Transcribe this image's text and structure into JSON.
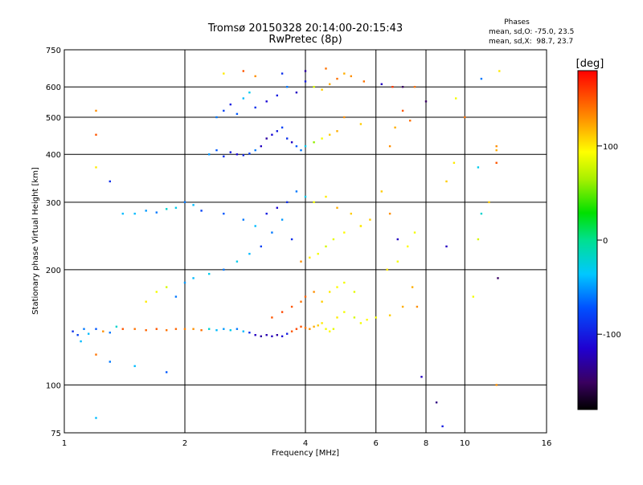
{
  "chart_data": {
    "type": "scatter",
    "title": "Tromsø 20150328 20:14:00-20:15:43",
    "subtitle": "RwPretec (8p)",
    "xlabel": "Frequency [MHz]",
    "ylabel": "Stationary phase Virtual Height [km]",
    "xscale": "log",
    "yscale": "log",
    "xlim": [
      1,
      16
    ],
    "ylim": [
      75,
      750
    ],
    "xticks": [
      1,
      2,
      4,
      6,
      8,
      10,
      16
    ],
    "yticks": [
      75,
      100,
      200,
      300,
      400,
      500,
      600,
      750
    ],
    "grid": true,
    "phases_info": {
      "title": "Phases",
      "line_o": "mean, sd,O: -75.0, 23.5",
      "line_x": "mean, sd,X:  98.7, 23.7"
    },
    "colorbar": {
      "label": "[deg]",
      "range": [
        -180,
        180
      ],
      "ticks": [
        100,
        0,
        -100
      ]
    },
    "points": [
      [
        1.05,
        138,
        -90
      ],
      [
        1.08,
        135,
        -80
      ],
      [
        1.12,
        140,
        -60
      ],
      [
        1.15,
        136,
        -40
      ],
      [
        1.2,
        140,
        -70
      ],
      [
        1.25,
        138,
        130
      ],
      [
        1.3,
        137,
        -60
      ],
      [
        1.35,
        142,
        -20
      ],
      [
        1.4,
        140,
        150
      ],
      [
        1.5,
        140,
        140
      ],
      [
        1.6,
        139,
        145
      ],
      [
        1.7,
        140,
        150
      ],
      [
        1.8,
        139,
        140
      ],
      [
        1.9,
        140,
        145
      ],
      [
        2.0,
        140,
        135
      ],
      [
        2.1,
        140,
        130
      ],
      [
        2.2,
        139,
        140
      ],
      [
        2.3,
        140,
        -20
      ],
      [
        2.4,
        139,
        -40
      ],
      [
        2.5,
        140,
        -50
      ],
      [
        2.6,
        139,
        -30
      ],
      [
        2.7,
        140,
        -60
      ],
      [
        2.8,
        138,
        -40
      ],
      [
        2.9,
        137,
        -90
      ],
      [
        3.0,
        135,
        -120
      ],
      [
        3.1,
        134,
        -130
      ],
      [
        3.2,
        135,
        -125
      ],
      [
        3.3,
        134,
        -120
      ],
      [
        3.4,
        135,
        -130
      ],
      [
        3.5,
        134,
        -110
      ],
      [
        3.6,
        136,
        -100
      ],
      [
        3.7,
        138,
        150
      ],
      [
        3.8,
        140,
        155
      ],
      [
        3.9,
        142,
        150
      ],
      [
        4.0,
        141,
        140
      ],
      [
        4.1,
        140,
        130
      ],
      [
        4.2,
        142,
        120
      ],
      [
        4.3,
        143,
        110
      ],
      [
        4.4,
        145,
        100
      ],
      [
        4.5,
        140,
        90
      ],
      [
        4.6,
        138,
        95
      ],
      [
        4.7,
        140,
        85
      ],
      [
        4.8,
        150,
        100
      ],
      [
        5.0,
        155,
        90
      ],
      [
        5.3,
        150,
        80
      ],
      [
        5.5,
        145,
        90
      ],
      [
        5.7,
        148,
        95
      ],
      [
        6.0,
        150,
        90
      ],
      [
        6.5,
        152,
        110
      ],
      [
        7.0,
        160,
        120
      ],
      [
        3.3,
        150,
        150
      ],
      [
        3.5,
        155,
        155
      ],
      [
        3.7,
        160,
        150
      ],
      [
        3.9,
        165,
        140
      ],
      [
        4.0,
        170,
        145
      ],
      [
        4.2,
        175,
        130
      ],
      [
        4.4,
        165,
        110
      ],
      [
        4.6,
        175,
        100
      ],
      [
        4.8,
        180,
        95
      ],
      [
        5.0,
        185,
        90
      ],
      [
        5.3,
        175,
        85
      ],
      [
        1.6,
        165,
        100
      ],
      [
        1.7,
        175,
        90
      ],
      [
        1.8,
        180,
        80
      ],
      [
        1.9,
        170,
        -60
      ],
      [
        2.0,
        185,
        -50
      ],
      [
        2.1,
        190,
        -40
      ],
      [
        2.3,
        195,
        -30
      ],
      [
        2.5,
        200,
        -60
      ],
      [
        2.7,
        210,
        -30
      ],
      [
        2.9,
        220,
        -40
      ],
      [
        3.1,
        230,
        -80
      ],
      [
        3.3,
        250,
        -60
      ],
      [
        3.5,
        270,
        -50
      ],
      [
        3.7,
        240,
        -90
      ],
      [
        3.9,
        210,
        130
      ],
      [
        4.1,
        215,
        100
      ],
      [
        4.3,
        220,
        90
      ],
      [
        4.5,
        230,
        80
      ],
      [
        4.7,
        240,
        85
      ],
      [
        5.0,
        250,
        95
      ],
      [
        5.5,
        260,
        100
      ],
      [
        5.8,
        270,
        110
      ],
      [
        1.5,
        280,
        -40
      ],
      [
        1.6,
        285,
        -50
      ],
      [
        1.7,
        282,
        -60
      ],
      [
        1.8,
        288,
        -20
      ],
      [
        1.9,
        290,
        -30
      ],
      [
        2.0,
        300,
        -60
      ],
      [
        2.1,
        295,
        -40
      ],
      [
        2.2,
        285,
        -80
      ],
      [
        2.5,
        280,
        -70
      ],
      [
        2.8,
        270,
        -60
      ],
      [
        3.0,
        260,
        -40
      ],
      [
        3.2,
        280,
        -100
      ],
      [
        3.4,
        290,
        -110
      ],
      [
        3.6,
        300,
        -90
      ],
      [
        3.8,
        320,
        -60
      ],
      [
        4.0,
        310,
        -30
      ],
      [
        4.2,
        300,
        90
      ],
      [
        4.5,
        310,
        100
      ],
      [
        4.8,
        290,
        120
      ],
      [
        5.2,
        280,
        110
      ],
      [
        5.5,
        260,
        100
      ],
      [
        6.5,
        280,
        130
      ],
      [
        6.8,
        240,
        -120
      ],
      [
        7.5,
        250,
        90
      ],
      [
        2.3,
        400,
        -50
      ],
      [
        2.4,
        410,
        -70
      ],
      [
        2.5,
        395,
        -90
      ],
      [
        2.6,
        405,
        -100
      ],
      [
        2.7,
        400,
        -110
      ],
      [
        2.8,
        398,
        -95
      ],
      [
        2.9,
        402,
        -80
      ],
      [
        3.0,
        410,
        -60
      ],
      [
        3.1,
        420,
        -120
      ],
      [
        3.2,
        440,
        -130
      ],
      [
        3.3,
        450,
        -110
      ],
      [
        3.4,
        460,
        -100
      ],
      [
        3.5,
        470,
        -80
      ],
      [
        3.6,
        440,
        -90
      ],
      [
        3.7,
        430,
        -120
      ],
      [
        3.8,
        420,
        -70
      ],
      [
        3.9,
        410,
        -60
      ],
      [
        4.0,
        420,
        -30
      ],
      [
        4.2,
        430,
        60
      ],
      [
        4.4,
        440,
        90
      ],
      [
        4.6,
        450,
        110
      ],
      [
        4.8,
        460,
        120
      ],
      [
        5.0,
        500,
        130
      ],
      [
        5.5,
        480,
        110
      ],
      [
        2.4,
        500,
        -60
      ],
      [
        2.5,
        520,
        -80
      ],
      [
        2.6,
        540,
        -100
      ],
      [
        2.7,
        510,
        -70
      ],
      [
        2.8,
        560,
        -40
      ],
      [
        2.9,
        580,
        -30
      ],
      [
        3.0,
        530,
        -90
      ],
      [
        3.2,
        550,
        -110
      ],
      [
        3.4,
        570,
        -100
      ],
      [
        3.6,
        600,
        -60
      ],
      [
        3.8,
        580,
        -120
      ],
      [
        4.0,
        620,
        -100
      ],
      [
        4.2,
        600,
        80
      ],
      [
        4.4,
        590,
        110
      ],
      [
        4.6,
        610,
        120
      ],
      [
        4.8,
        630,
        140
      ],
      [
        5.2,
        640,
        130
      ],
      [
        5.6,
        620,
        140
      ],
      [
        6.2,
        610,
        -120
      ],
      [
        6.6,
        600,
        160
      ],
      [
        7.0,
        520,
        150
      ],
      [
        7.3,
        490,
        140
      ],
      [
        8.0,
        550,
        -150
      ],
      [
        2.5,
        650,
        100
      ],
      [
        2.8,
        660,
        150
      ],
      [
        3.0,
        640,
        130
      ],
      [
        3.5,
        650,
        -90
      ],
      [
        4.0,
        660,
        -130
      ],
      [
        4.5,
        670,
        140
      ],
      [
        5.0,
        650,
        120
      ],
      [
        1.2,
        520,
        130
      ],
      [
        1.2,
        450,
        150
      ],
      [
        1.2,
        370,
        100
      ],
      [
        1.3,
        340,
        -90
      ],
      [
        1.4,
        280,
        -40
      ],
      [
        1.1,
        130,
        -40
      ],
      [
        1.2,
        120,
        140
      ],
      [
        1.3,
        115,
        -60
      ],
      [
        1.2,
        82,
        -40
      ],
      [
        1.5,
        112,
        -40
      ],
      [
        1.8,
        108,
        -70
      ],
      [
        7.8,
        105,
        -120
      ],
      [
        8.5,
        90,
        -140
      ],
      [
        8.8,
        78,
        -100
      ],
      [
        7.6,
        160,
        130
      ],
      [
        7.4,
        180,
        120
      ],
      [
        9.0,
        230,
        -120
      ],
      [
        9.0,
        340,
        110
      ],
      [
        9.4,
        380,
        100
      ],
      [
        10.0,
        500,
        140
      ],
      [
        10.5,
        170,
        90
      ],
      [
        10.8,
        240,
        80
      ],
      [
        11.0,
        280,
        -20
      ],
      [
        10.8,
        370,
        -30
      ],
      [
        11.5,
        300,
        110
      ],
      [
        12.0,
        420,
        130
      ],
      [
        12.0,
        410,
        120
      ],
      [
        12.0,
        380,
        150
      ],
      [
        12.1,
        190,
        -150
      ],
      [
        12.0,
        100,
        130
      ],
      [
        11.0,
        630,
        -60
      ],
      [
        12.2,
        660,
        100
      ],
      [
        9.5,
        560,
        90
      ],
      [
        7.5,
        600,
        140
      ],
      [
        7.0,
        600,
        -150
      ],
      [
        6.7,
        470,
        120
      ],
      [
        6.5,
        420,
        130
      ],
      [
        6.2,
        320,
        110
      ],
      [
        6.4,
        200,
        100
      ],
      [
        6.8,
        210,
        90
      ],
      [
        7.2,
        230,
        95
      ]
    ]
  }
}
